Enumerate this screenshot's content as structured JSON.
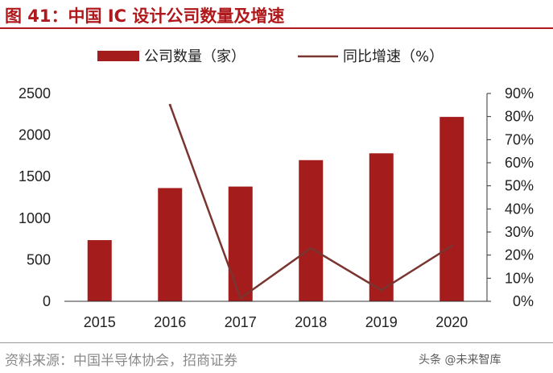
{
  "title": "图 41：中国 IC 设计公司数量及增速",
  "source": "资料来源：中国半导体协会，招商证券",
  "watermark": "头条 @未来智库",
  "colors": {
    "accent": "#b0191c",
    "bar": "#a51c1c",
    "line": "#7b3530"
  },
  "chart_data": {
    "type": "bar",
    "categories": [
      "2015",
      "2016",
      "2017",
      "2018",
      "2019",
      "2020"
    ],
    "series": [
      {
        "name": "公司数量（家）",
        "type": "bar",
        "axis": "left",
        "values": [
          736,
          1362,
          1380,
          1698,
          1780,
          2218
        ]
      },
      {
        "name": "同比增速（%）",
        "type": "line",
        "axis": "right",
        "values": [
          null,
          85,
          1.3,
          23,
          4.8,
          24
        ]
      }
    ],
    "y_left": {
      "min": 0,
      "max": 2500,
      "ticks": [
        "0",
        "500",
        "1000",
        "1500",
        "2000",
        "2500"
      ]
    },
    "y_right": {
      "min": 0,
      "max": 90,
      "ticks": [
        "0%",
        "10%",
        "20%",
        "30%",
        "40%",
        "50%",
        "60%",
        "70%",
        "80%",
        "90%"
      ]
    },
    "legend_position": "top",
    "grid": false
  }
}
